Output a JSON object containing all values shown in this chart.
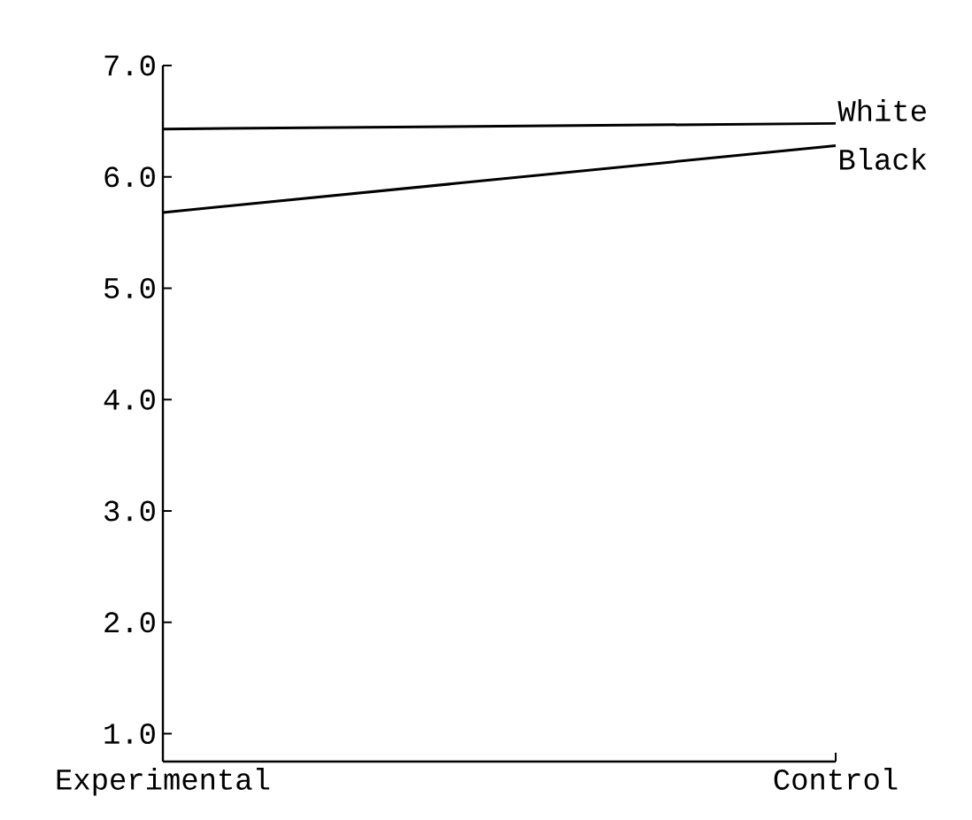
{
  "chart_data": {
    "type": "line",
    "categories": [
      "Experimental",
      "Control"
    ],
    "series": [
      {
        "name": "White",
        "color": "#000000",
        "values": [
          6.43,
          6.48
        ]
      },
      {
        "name": "Black",
        "color": "#000000",
        "values": [
          5.68,
          6.28
        ]
      }
    ],
    "ylim": [
      0.75,
      7.0
    ],
    "yticks": [
      {
        "value": 1,
        "label": "1.0"
      },
      {
        "value": 2,
        "label": "2.0"
      },
      {
        "value": 3,
        "label": "3.0"
      },
      {
        "value": 4,
        "label": "4.0"
      },
      {
        "value": 5,
        "label": "5.0"
      },
      {
        "value": 6,
        "label": "6.0"
      },
      {
        "value": 7,
        "label": "7.0"
      }
    ],
    "grid": false,
    "legend": false,
    "marker": "none",
    "line_style": "solid"
  }
}
